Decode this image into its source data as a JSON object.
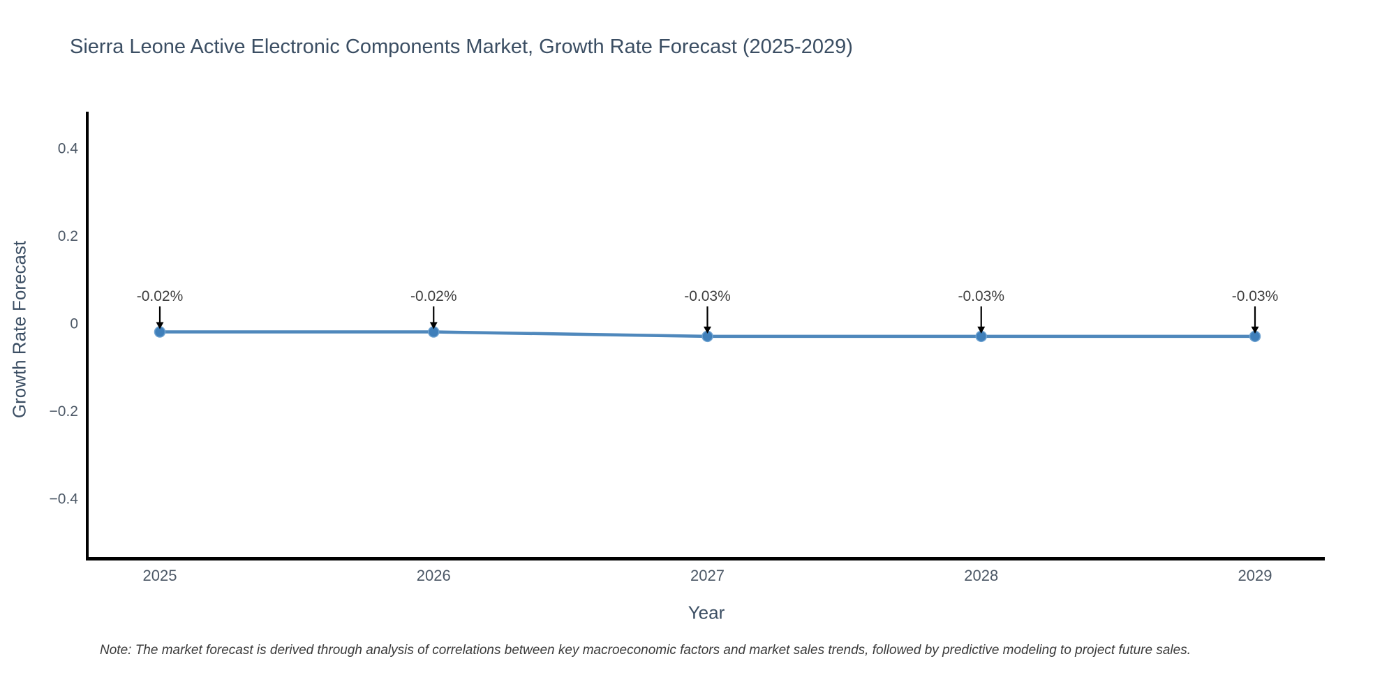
{
  "chart_data": {
    "type": "line",
    "title": "Sierra Leone Active Electronic Components Market, Growth Rate Forecast (2025-2029)",
    "xlabel": "Year",
    "ylabel": "Growth Rate Forecast",
    "categories": [
      "2025",
      "2026",
      "2027",
      "2028",
      "2029"
    ],
    "series": [
      {
        "name": "Growth Rate Forecast",
        "values": [
          -0.02,
          -0.02,
          -0.03,
          -0.03,
          -0.03
        ],
        "point_labels": [
          "-0.02%",
          "-0.02%",
          "-0.03%",
          "-0.03%",
          "-0.03%"
        ]
      }
    ],
    "yticks": [
      {
        "value": 0.4,
        "label": "0.4"
      },
      {
        "value": 0.2,
        "label": "0.2"
      },
      {
        "value": 0,
        "label": "0"
      },
      {
        "value": -0.2,
        "label": "−0.2"
      },
      {
        "value": -0.4,
        "label": "−0.4"
      }
    ],
    "ylim": [
      -0.54,
      0.48
    ],
    "grid": false,
    "legend": "none",
    "line_color": "#4f88bc",
    "marker_color": "#3f7fba",
    "marker_edge_color": "#6fa3d1",
    "axis_color": "#000000",
    "arrow_color": "#000000",
    "tick_color": "#4c5866",
    "annotation_color": "#3f3f3f",
    "title_color": "#3b4e63",
    "note_color": "#3a3a3a"
  },
  "footnote": "Note: The market forecast is derived through analysis of correlations between key macroeconomic factors and market sales trends, followed by predictive modeling to project future sales."
}
